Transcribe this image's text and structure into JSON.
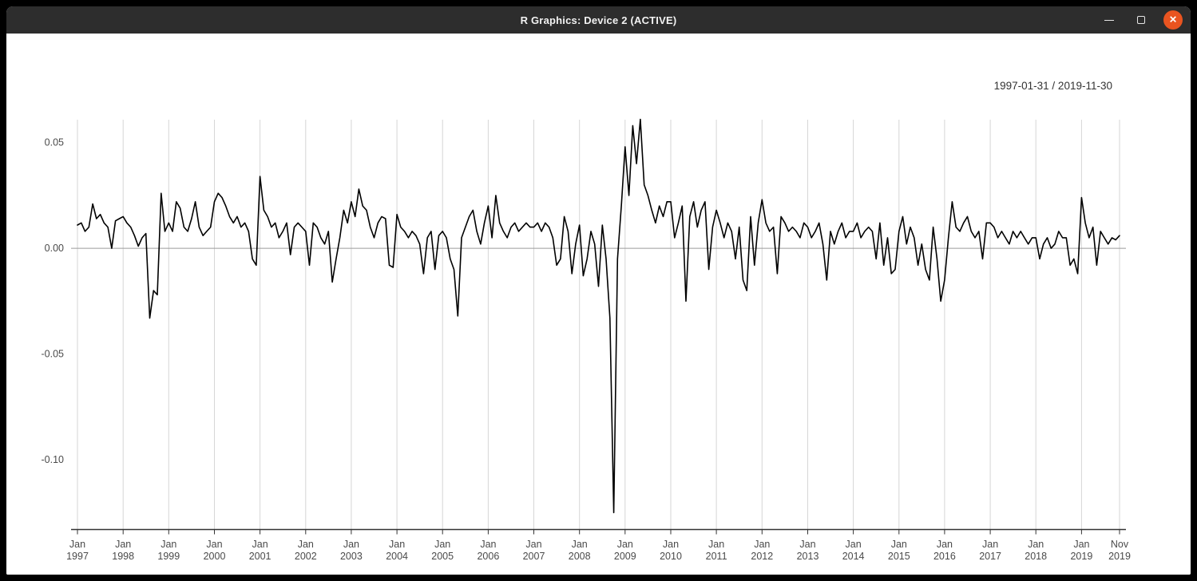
{
  "window": {
    "title": "R Graphics: Device 2 (ACTIVE)",
    "controls": {
      "minimize_label": "minimize",
      "maximize_label": "maximize",
      "close_label": "close",
      "close_glyph": "✕",
      "close_color": "#e95420"
    }
  },
  "chart_data": {
    "type": "line",
    "title": "",
    "range_label": "1997-01-31 / 2019-11-30",
    "start": "1997-01",
    "end": "2019-11",
    "frequency": "monthly",
    "series_color": "#000000",
    "grid": "vertical-per-january",
    "legend": "none",
    "ylim": [
      -0.133,
      0.061
    ],
    "y_ticks": [
      {
        "label": "0.05",
        "value": 0.05
      },
      {
        "label": "0.00",
        "value": 0.0
      },
      {
        "label": "-0.05",
        "value": -0.05
      },
      {
        "label": "-0.10",
        "value": -0.1
      }
    ],
    "x_ticks": [
      {
        "month": "Jan",
        "year": "1997"
      },
      {
        "month": "Jan",
        "year": "1998"
      },
      {
        "month": "Jan",
        "year": "1999"
      },
      {
        "month": "Jan",
        "year": "2000"
      },
      {
        "month": "Jan",
        "year": "2001"
      },
      {
        "month": "Jan",
        "year": "2002"
      },
      {
        "month": "Jan",
        "year": "2003"
      },
      {
        "month": "Jan",
        "year": "2004"
      },
      {
        "month": "Jan",
        "year": "2005"
      },
      {
        "month": "Jan",
        "year": "2006"
      },
      {
        "month": "Jan",
        "year": "2007"
      },
      {
        "month": "Jan",
        "year": "2008"
      },
      {
        "month": "Jan",
        "year": "2009"
      },
      {
        "month": "Jan",
        "year": "2010"
      },
      {
        "month": "Jan",
        "year": "2011"
      },
      {
        "month": "Jan",
        "year": "2012"
      },
      {
        "month": "Jan",
        "year": "2013"
      },
      {
        "month": "Jan",
        "year": "2014"
      },
      {
        "month": "Jan",
        "year": "2015"
      },
      {
        "month": "Jan",
        "year": "2016"
      },
      {
        "month": "Jan",
        "year": "2017"
      },
      {
        "month": "Jan",
        "year": "2018"
      },
      {
        "month": "Jan",
        "year": "2019"
      },
      {
        "month": "Nov",
        "year": "2019"
      }
    ],
    "values": [
      0.011,
      0.012,
      0.008,
      0.01,
      0.021,
      0.014,
      0.016,
      0.012,
      0.01,
      0.0,
      0.013,
      0.014,
      0.015,
      0.012,
      0.01,
      0.006,
      0.001,
      0.005,
      0.007,
      -0.033,
      -0.02,
      -0.022,
      0.026,
      0.008,
      0.012,
      0.008,
      0.022,
      0.019,
      0.01,
      0.008,
      0.014,
      0.022,
      0.01,
      0.006,
      0.008,
      0.01,
      0.022,
      0.026,
      0.024,
      0.02,
      0.015,
      0.012,
      0.015,
      0.01,
      0.012,
      0.008,
      -0.005,
      -0.008,
      0.034,
      0.018,
      0.015,
      0.01,
      0.012,
      0.005,
      0.008,
      0.012,
      -0.003,
      0.01,
      0.012,
      0.01,
      0.008,
      -0.008,
      0.012,
      0.01,
      0.005,
      0.002,
      0.008,
      -0.016,
      -0.005,
      0.005,
      0.018,
      0.012,
      0.022,
      0.015,
      0.028,
      0.02,
      0.018,
      0.01,
      0.005,
      0.012,
      0.015,
      0.014,
      -0.008,
      -0.009,
      0.016,
      0.01,
      0.008,
      0.005,
      0.008,
      0.006,
      0.002,
      -0.012,
      0.005,
      0.008,
      -0.01,
      0.006,
      0.008,
      0.005,
      -0.005,
      -0.01,
      -0.032,
      0.005,
      0.01,
      0.015,
      0.018,
      0.008,
      0.002,
      0.012,
      0.02,
      0.005,
      0.025,
      0.012,
      0.008,
      0.005,
      0.01,
      0.012,
      0.008,
      0.01,
      0.012,
      0.01,
      0.01,
      0.012,
      0.008,
      0.012,
      0.01,
      0.005,
      -0.008,
      -0.005,
      0.015,
      0.008,
      -0.012,
      0.002,
      0.011,
      -0.013,
      -0.005,
      0.008,
      0.002,
      -0.018,
      0.011,
      -0.005,
      -0.033,
      -0.125,
      -0.005,
      0.02,
      0.048,
      0.025,
      0.058,
      0.04,
      0.061,
      0.03,
      0.025,
      0.018,
      0.012,
      0.02,
      0.015,
      0.022,
      0.022,
      0.005,
      0.012,
      0.02,
      -0.025,
      0.015,
      0.022,
      0.01,
      0.018,
      0.022,
      -0.01,
      0.01,
      0.018,
      0.012,
      0.005,
      0.012,
      0.008,
      -0.005,
      0.01,
      -0.015,
      -0.02,
      0.015,
      -0.008,
      0.012,
      0.023,
      0.012,
      0.008,
      0.01,
      -0.012,
      0.015,
      0.012,
      0.008,
      0.01,
      0.008,
      0.005,
      0.012,
      0.01,
      0.005,
      0.008,
      0.012,
      0.002,
      -0.015,
      0.008,
      0.002,
      0.008,
      0.012,
      0.005,
      0.008,
      0.008,
      0.012,
      0.005,
      0.008,
      0.01,
      0.008,
      -0.005,
      0.012,
      -0.008,
      0.005,
      -0.012,
      -0.01,
      0.008,
      0.015,
      0.002,
      0.01,
      0.005,
      -0.008,
      0.002,
      -0.01,
      -0.015,
      0.01,
      -0.005,
      -0.025,
      -0.015,
      0.005,
      0.022,
      0.01,
      0.008,
      0.012,
      0.015,
      0.008,
      0.005,
      0.008,
      -0.005,
      0.012,
      0.012,
      0.01,
      0.005,
      0.008,
      0.005,
      0.002,
      0.008,
      0.005,
      0.008,
      0.005,
      0.002,
      0.005,
      0.005,
      -0.005,
      0.002,
      0.005,
      0.0,
      0.002,
      0.008,
      0.005,
      0.005,
      -0.008,
      -0.005,
      -0.012,
      0.024,
      0.012,
      0.005,
      0.01,
      -0.008,
      0.008,
      0.005,
      0.002,
      0.005,
      0.004,
      0.006
    ]
  }
}
